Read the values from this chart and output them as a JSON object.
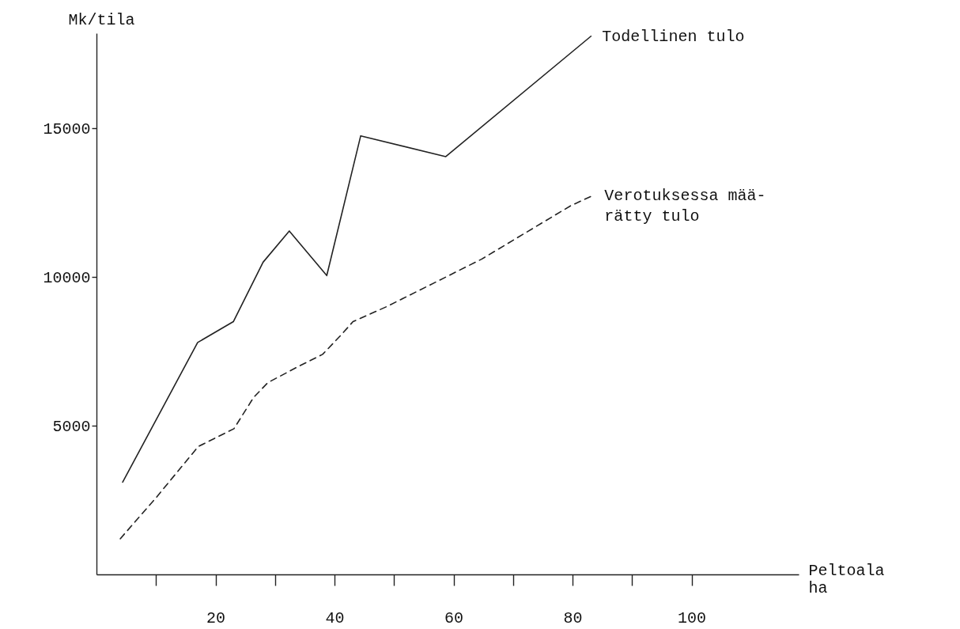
{
  "chart_data": {
    "type": "line",
    "xlabel": "Peltoala\nha",
    "ylabel": "Mk/tila",
    "xlim": [
      0,
      118
    ],
    "ylim": [
      0,
      18200
    ],
    "xticks": [
      {
        "value": 10,
        "label": null
      },
      20,
      {
        "value": 30,
        "label": null
      },
      40,
      {
        "value": 50,
        "label": null
      },
      60,
      {
        "value": 70,
        "label": null
      },
      80,
      {
        "value": 90,
        "label": null
      },
      100
    ],
    "yticks": [
      5000,
      10000,
      15000
    ],
    "grid": false,
    "marker": "none",
    "series": [
      {
        "name": "Todellinen tulo",
        "color": "#222222",
        "line_style": "solid",
        "x": [
          4.4,
          17,
          23,
          28,
          32.4,
          38.7,
          44.4,
          58.7,
          83.1
        ],
        "values": [
          3100,
          7800,
          8500,
          10500,
          11550,
          10050,
          14750,
          14050,
          18100
        ]
      },
      {
        "name": "Verotuksessa mää-\nrätty tulo",
        "color": "#222222",
        "line_style": "dashed",
        "x": [
          4,
          10.1,
          17.1,
          23.1,
          26.4,
          28.8,
          34,
          38,
          41.1,
          43.1,
          48.7,
          64.7,
          79.7,
          83.5
        ],
        "values": [
          1200,
          2600,
          4300,
          4900,
          5950,
          6450,
          7000,
          7400,
          8050,
          8500,
          9000,
          10600,
          12400,
          12750
        ]
      }
    ]
  }
}
